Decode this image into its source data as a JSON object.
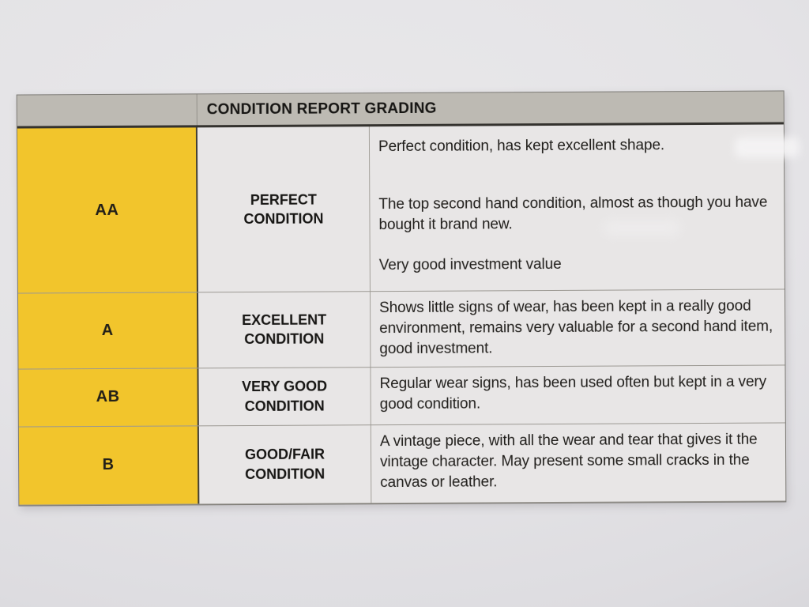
{
  "document": {
    "header": {
      "title": "CONDITION REPORT GRADING"
    },
    "rows": [
      {
        "grade": "AA",
        "condition": {
          "line1": "PERFECT",
          "line2": "CONDITION"
        },
        "paragraphs": [
          "Perfect condition, has kept excellent shape.",
          "The top second hand condition, almost as though you have bought it brand new.",
          "Very good investment value"
        ]
      },
      {
        "grade": "A",
        "condition": {
          "line1": "EXCELLENT",
          "line2": "CONDITION"
        },
        "paragraphs": [
          "Shows little signs of wear, has been kept in a really good environment, remains very valuable for a second hand item, good investment."
        ]
      },
      {
        "grade": "AB",
        "condition": {
          "line1": "VERY GOOD",
          "line2": "CONDITION"
        },
        "paragraphs": [
          "Regular wear signs, has been used often but kept in a very good condition."
        ]
      },
      {
        "grade": "B",
        "condition": {
          "line1": "GOOD/FAIR",
          "line2": "CONDITION"
        },
        "paragraphs": [
          "A vintage piece, with all the wear and tear that gives it the vintage character. May present some small cracks in the canvas or leather."
        ]
      }
    ],
    "colors": {
      "grade_column_yellow": "#f2c52c",
      "header_gray": "#bdbab3",
      "cell_gray": "#e8e6e6",
      "paper_gray": "#e0dfe2",
      "text": "#1d1b18"
    }
  }
}
